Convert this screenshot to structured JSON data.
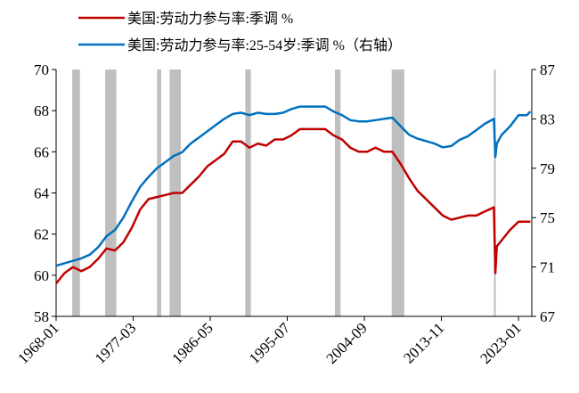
{
  "chart_data": {
    "type": "line",
    "series": [
      {
        "name": "美国:劳动力参与率:季调 %",
        "color": "#c00000",
        "axis": "y",
        "values": [
          59.6,
          60.1,
          60.4,
          60.2,
          60.4,
          60.8,
          61.3,
          61.2,
          61.6,
          62.3,
          63.2,
          63.7,
          63.8,
          63.9,
          64.0,
          64.0,
          64.4,
          64.8,
          65.3,
          65.6,
          65.9,
          66.5,
          66.5,
          66.2,
          66.4,
          66.3,
          66.6,
          66.6,
          66.8,
          67.1,
          67.1,
          67.1,
          67.1,
          66.8,
          66.6,
          66.2,
          66.0,
          66.0,
          66.2,
          66.0,
          66.0,
          65.4,
          64.7,
          64.1,
          63.7,
          63.3,
          62.9,
          62.7,
          62.8,
          62.9,
          62.9,
          63.1,
          63.3,
          60.1,
          61.4,
          61.7,
          62.2,
          62.6,
          62.6,
          62.6
        ]
      },
      {
        "name": "美国:劳动力参与率:25-54岁:季调 %（右轴）",
        "color": "#0070c0",
        "axis": "y2",
        "values": [
          71.1,
          71.3,
          71.5,
          71.7,
          72.0,
          72.6,
          73.5,
          74.0,
          75.0,
          76.3,
          77.5,
          78.3,
          79.0,
          79.5,
          80.0,
          80.3,
          81.0,
          81.5,
          82.0,
          82.5,
          83.0,
          83.4,
          83.5,
          83.3,
          83.5,
          83.4,
          83.4,
          83.5,
          83.8,
          84.0,
          84.0,
          84.0,
          84.0,
          83.6,
          83.3,
          82.9,
          82.8,
          82.8,
          82.9,
          83.0,
          83.1,
          82.4,
          81.7,
          81.4,
          81.2,
          81.0,
          80.7,
          80.8,
          81.3,
          81.6,
          82.1,
          82.6,
          83.0,
          79.9,
          81.0,
          81.7,
          82.4,
          83.3,
          83.3,
          83.6
        ]
      }
    ],
    "x": [
      "1968-01",
      "1969-01",
      "1970-01",
      "1971-01",
      "1972-01",
      "1973-01",
      "1974-01",
      "1975-01",
      "1976-01",
      "1977-01",
      "1978-01",
      "1979-01",
      "1980-01",
      "1981-01",
      "1982-01",
      "1983-01",
      "1984-01",
      "1985-01",
      "1986-01",
      "1987-01",
      "1988-01",
      "1989-01",
      "1990-01",
      "1991-01",
      "1992-01",
      "1993-01",
      "1994-01",
      "1995-01",
      "1996-01",
      "1997-01",
      "1998-01",
      "1999-01",
      "2000-01",
      "2001-01",
      "2002-01",
      "2003-01",
      "2004-01",
      "2005-01",
      "2006-01",
      "2007-01",
      "2008-01",
      "2009-01",
      "2010-01",
      "2011-01",
      "2012-01",
      "2013-01",
      "2014-01",
      "2015-01",
      "2016-01",
      "2017-01",
      "2018-01",
      "2019-01",
      "2020-02",
      "2020-04",
      "2020-06",
      "2021-01",
      "2022-01",
      "2023-01",
      "2024-01",
      "2024-06"
    ],
    "shaded_periods": [
      [
        "1969-12",
        "1970-11"
      ],
      [
        "1973-11",
        "1975-03"
      ],
      [
        "1980-01",
        "1980-07"
      ],
      [
        "1981-07",
        "1982-11"
      ],
      [
        "1990-07",
        "1991-03"
      ],
      [
        "2001-03",
        "2001-11"
      ],
      [
        "2007-12",
        "2009-06"
      ],
      [
        "2020-02",
        "2020-04"
      ]
    ],
    "shade_color": "#bfbfbf",
    "xlim": [
      "1968-01",
      "2024-08"
    ],
    "xticks": [
      "1968-01",
      "1977-03",
      "1986-05",
      "1995-07",
      "2004-09",
      "2013-11",
      "2023-01"
    ],
    "ylim": [
      58,
      70
    ],
    "yticks": [
      58,
      60,
      62,
      64,
      66,
      68,
      70
    ],
    "y2lim": [
      67,
      87
    ],
    "y2ticks": [
      67,
      71,
      75,
      79,
      83,
      87
    ],
    "grid": false,
    "legend": "top"
  }
}
